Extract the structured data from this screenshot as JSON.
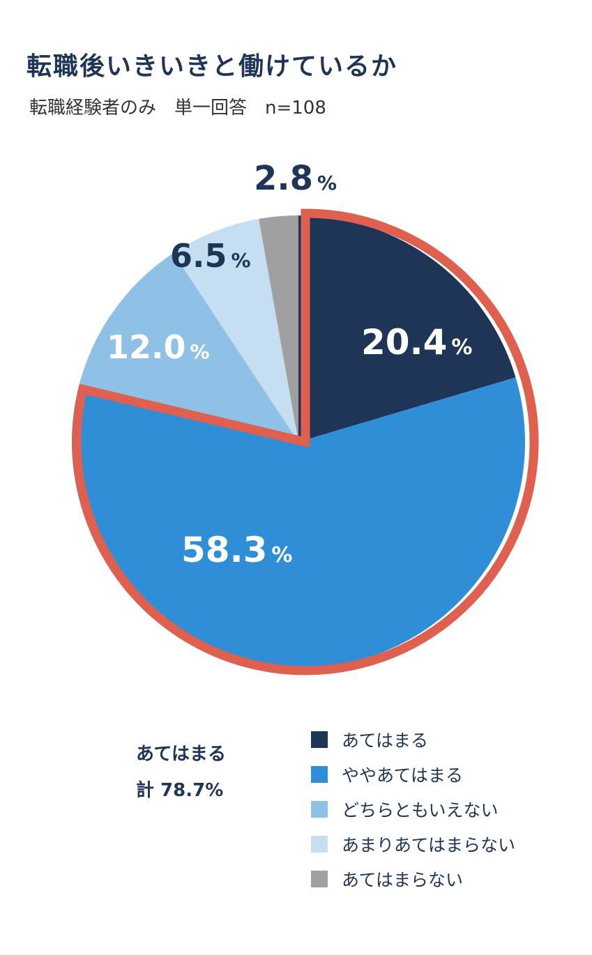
{
  "title": "転職後いきいきと働けているか",
  "subtitle": "転職経験者のみ　単一回答　n=108",
  "chart_data": {
    "type": "pie",
    "title": "転職後いきいきと働けているか",
    "subtitle": "転職経験者のみ　単一回答　n=108",
    "start": "12 o'clock",
    "direction": "clockwise",
    "categories": [
      "あてはまる",
      "ややあてはまる",
      "どちらともいえない",
      "あまりあてはまらない",
      "あてはまらない"
    ],
    "values": [
      20.4,
      58.3,
      12.0,
      6.5,
      2.8
    ],
    "labels": [
      "20.4",
      "58.3",
      "12.0",
      "6.5",
      "2.8"
    ],
    "unit": "%",
    "colors": [
      "#1f3558",
      "#2f8ed6",
      "#8fc0e5",
      "#c6def2",
      "#a0a0a0"
    ],
    "highlight": {
      "slices": [
        "あてはまる",
        "ややあてはまる"
      ],
      "outline_color": "#e0604f",
      "label_line1": "あてはまる",
      "label_line2": "計 78.7%"
    },
    "legend_position": "bottom-right"
  }
}
